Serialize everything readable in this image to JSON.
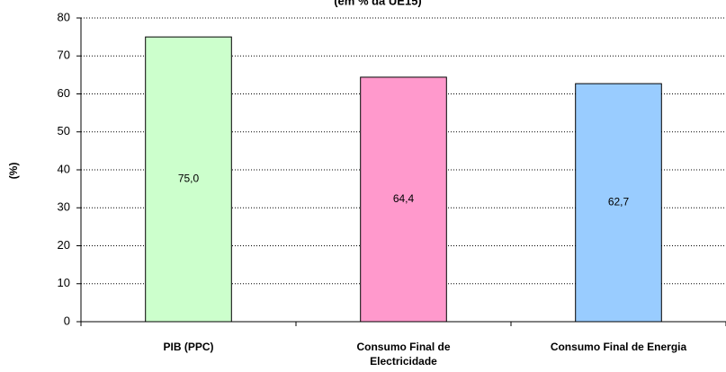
{
  "chart_data": {
    "type": "bar",
    "title": "(em % da UE15)",
    "y_label": "(%)",
    "categories": [
      "PIB (PPC)",
      "Consumo Final de Electricidade",
      "Consumo Final de Energia"
    ],
    "values": [
      75.0,
      64.4,
      62.7
    ],
    "value_labels": [
      "75,0",
      "64,4",
      "62,7"
    ],
    "colors": [
      "#ccffcc",
      "#ff99cc",
      "#99ccff"
    ],
    "ylim": [
      0,
      80
    ],
    "yticks": [
      0,
      10,
      20,
      30,
      40,
      50,
      60,
      70,
      80
    ],
    "grid": true
  }
}
